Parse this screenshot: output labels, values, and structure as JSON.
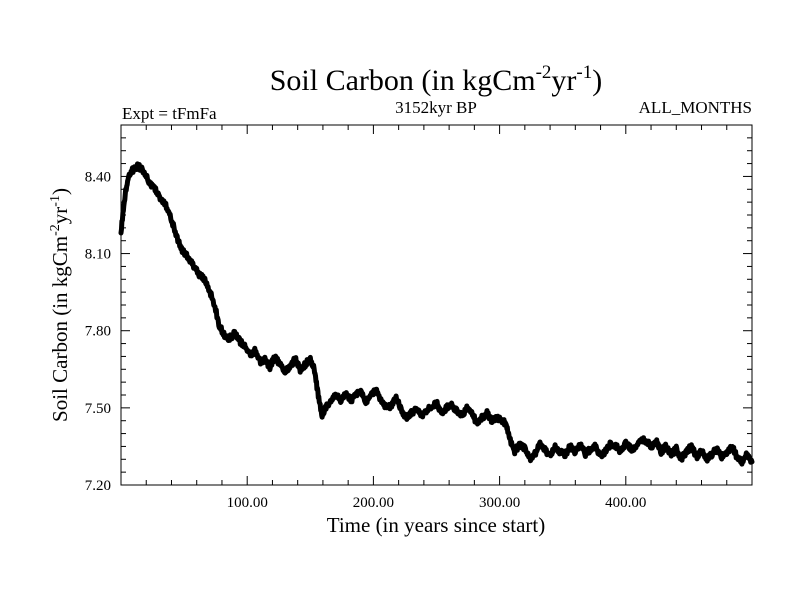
{
  "chart_data": {
    "type": "line",
    "title": {
      "main": "Soil Carbon (in kgCm",
      "sup1": "-2",
      "mid": "yr",
      "sup2": "-1",
      "end": ")"
    },
    "header_left": "Expt = tFmFa",
    "header_center": "3152kyr BP",
    "header_right": "ALL_MONTHS",
    "xlabel": "Time (in years since start)",
    "ylabel": {
      "main": "Soil Carbon (in kgCm",
      "sup1": "-2",
      "mid": "yr",
      "sup2": "-1",
      "end": ")"
    },
    "xlim": [
      0,
      500
    ],
    "ylim": [
      7.2,
      8.6
    ],
    "x_ticks": [
      100,
      200,
      300,
      400
    ],
    "x_tick_labels": [
      "100.00",
      "200.00",
      "300.00",
      "400.00"
    ],
    "y_ticks": [
      7.2,
      7.5,
      7.8,
      8.1,
      8.4
    ],
    "y_tick_labels": [
      "7.20",
      "7.50",
      "7.80",
      "8.10",
      "8.40"
    ],
    "series": [
      {
        "name": "Soil Carbon",
        "color": "#000000",
        "x": [
          0,
          3,
          6,
          10,
          14,
          18,
          22,
          26,
          30,
          34,
          38,
          42,
          46,
          50,
          54,
          58,
          62,
          66,
          70,
          74,
          78,
          82,
          86,
          90,
          94,
          98,
          102,
          106,
          110,
          114,
          118,
          122,
          126,
          130,
          134,
          138,
          142,
          146,
          150,
          153,
          156,
          159,
          162,
          166,
          170,
          174,
          178,
          182,
          186,
          190,
          194,
          198,
          202,
          206,
          210,
          214,
          218,
          222,
          226,
          230,
          234,
          238,
          242,
          246,
          250,
          254,
          258,
          262,
          266,
          270,
          274,
          278,
          282,
          286,
          290,
          294,
          298,
          302,
          305,
          308,
          312,
          316,
          320,
          324,
          328,
          332,
          336,
          340,
          344,
          348,
          352,
          356,
          360,
          364,
          368,
          372,
          376,
          380,
          384,
          388,
          392,
          396,
          400,
          404,
          408,
          412,
          416,
          420,
          424,
          428,
          432,
          436,
          440,
          444,
          448,
          452,
          456,
          460,
          464,
          468,
          472,
          476,
          480,
          484,
          488,
          492,
          496,
          500
        ],
        "values": [
          8.18,
          8.32,
          8.4,
          8.43,
          8.44,
          8.42,
          8.38,
          8.36,
          8.32,
          8.3,
          8.26,
          8.2,
          8.14,
          8.1,
          8.08,
          8.05,
          8.02,
          8.0,
          7.96,
          7.9,
          7.82,
          7.78,
          7.77,
          7.79,
          7.76,
          7.74,
          7.71,
          7.72,
          7.68,
          7.69,
          7.66,
          7.7,
          7.67,
          7.64,
          7.66,
          7.69,
          7.65,
          7.67,
          7.69,
          7.65,
          7.56,
          7.47,
          7.5,
          7.52,
          7.55,
          7.53,
          7.56,
          7.53,
          7.55,
          7.57,
          7.52,
          7.55,
          7.57,
          7.53,
          7.5,
          7.51,
          7.54,
          7.49,
          7.46,
          7.48,
          7.5,
          7.47,
          7.49,
          7.5,
          7.52,
          7.48,
          7.5,
          7.51,
          7.49,
          7.47,
          7.5,
          7.48,
          7.44,
          7.46,
          7.48,
          7.45,
          7.46,
          7.45,
          7.44,
          7.38,
          7.33,
          7.36,
          7.34,
          7.3,
          7.32,
          7.36,
          7.34,
          7.31,
          7.35,
          7.33,
          7.32,
          7.35,
          7.33,
          7.36,
          7.32,
          7.34,
          7.35,
          7.31,
          7.33,
          7.36,
          7.35,
          7.33,
          7.36,
          7.34,
          7.35,
          7.38,
          7.37,
          7.35,
          7.37,
          7.33,
          7.35,
          7.32,
          7.34,
          7.3,
          7.33,
          7.35,
          7.31,
          7.33,
          7.3,
          7.32,
          7.34,
          7.31,
          7.33,
          7.35,
          7.31,
          7.29,
          7.32,
          7.29
        ]
      }
    ]
  }
}
